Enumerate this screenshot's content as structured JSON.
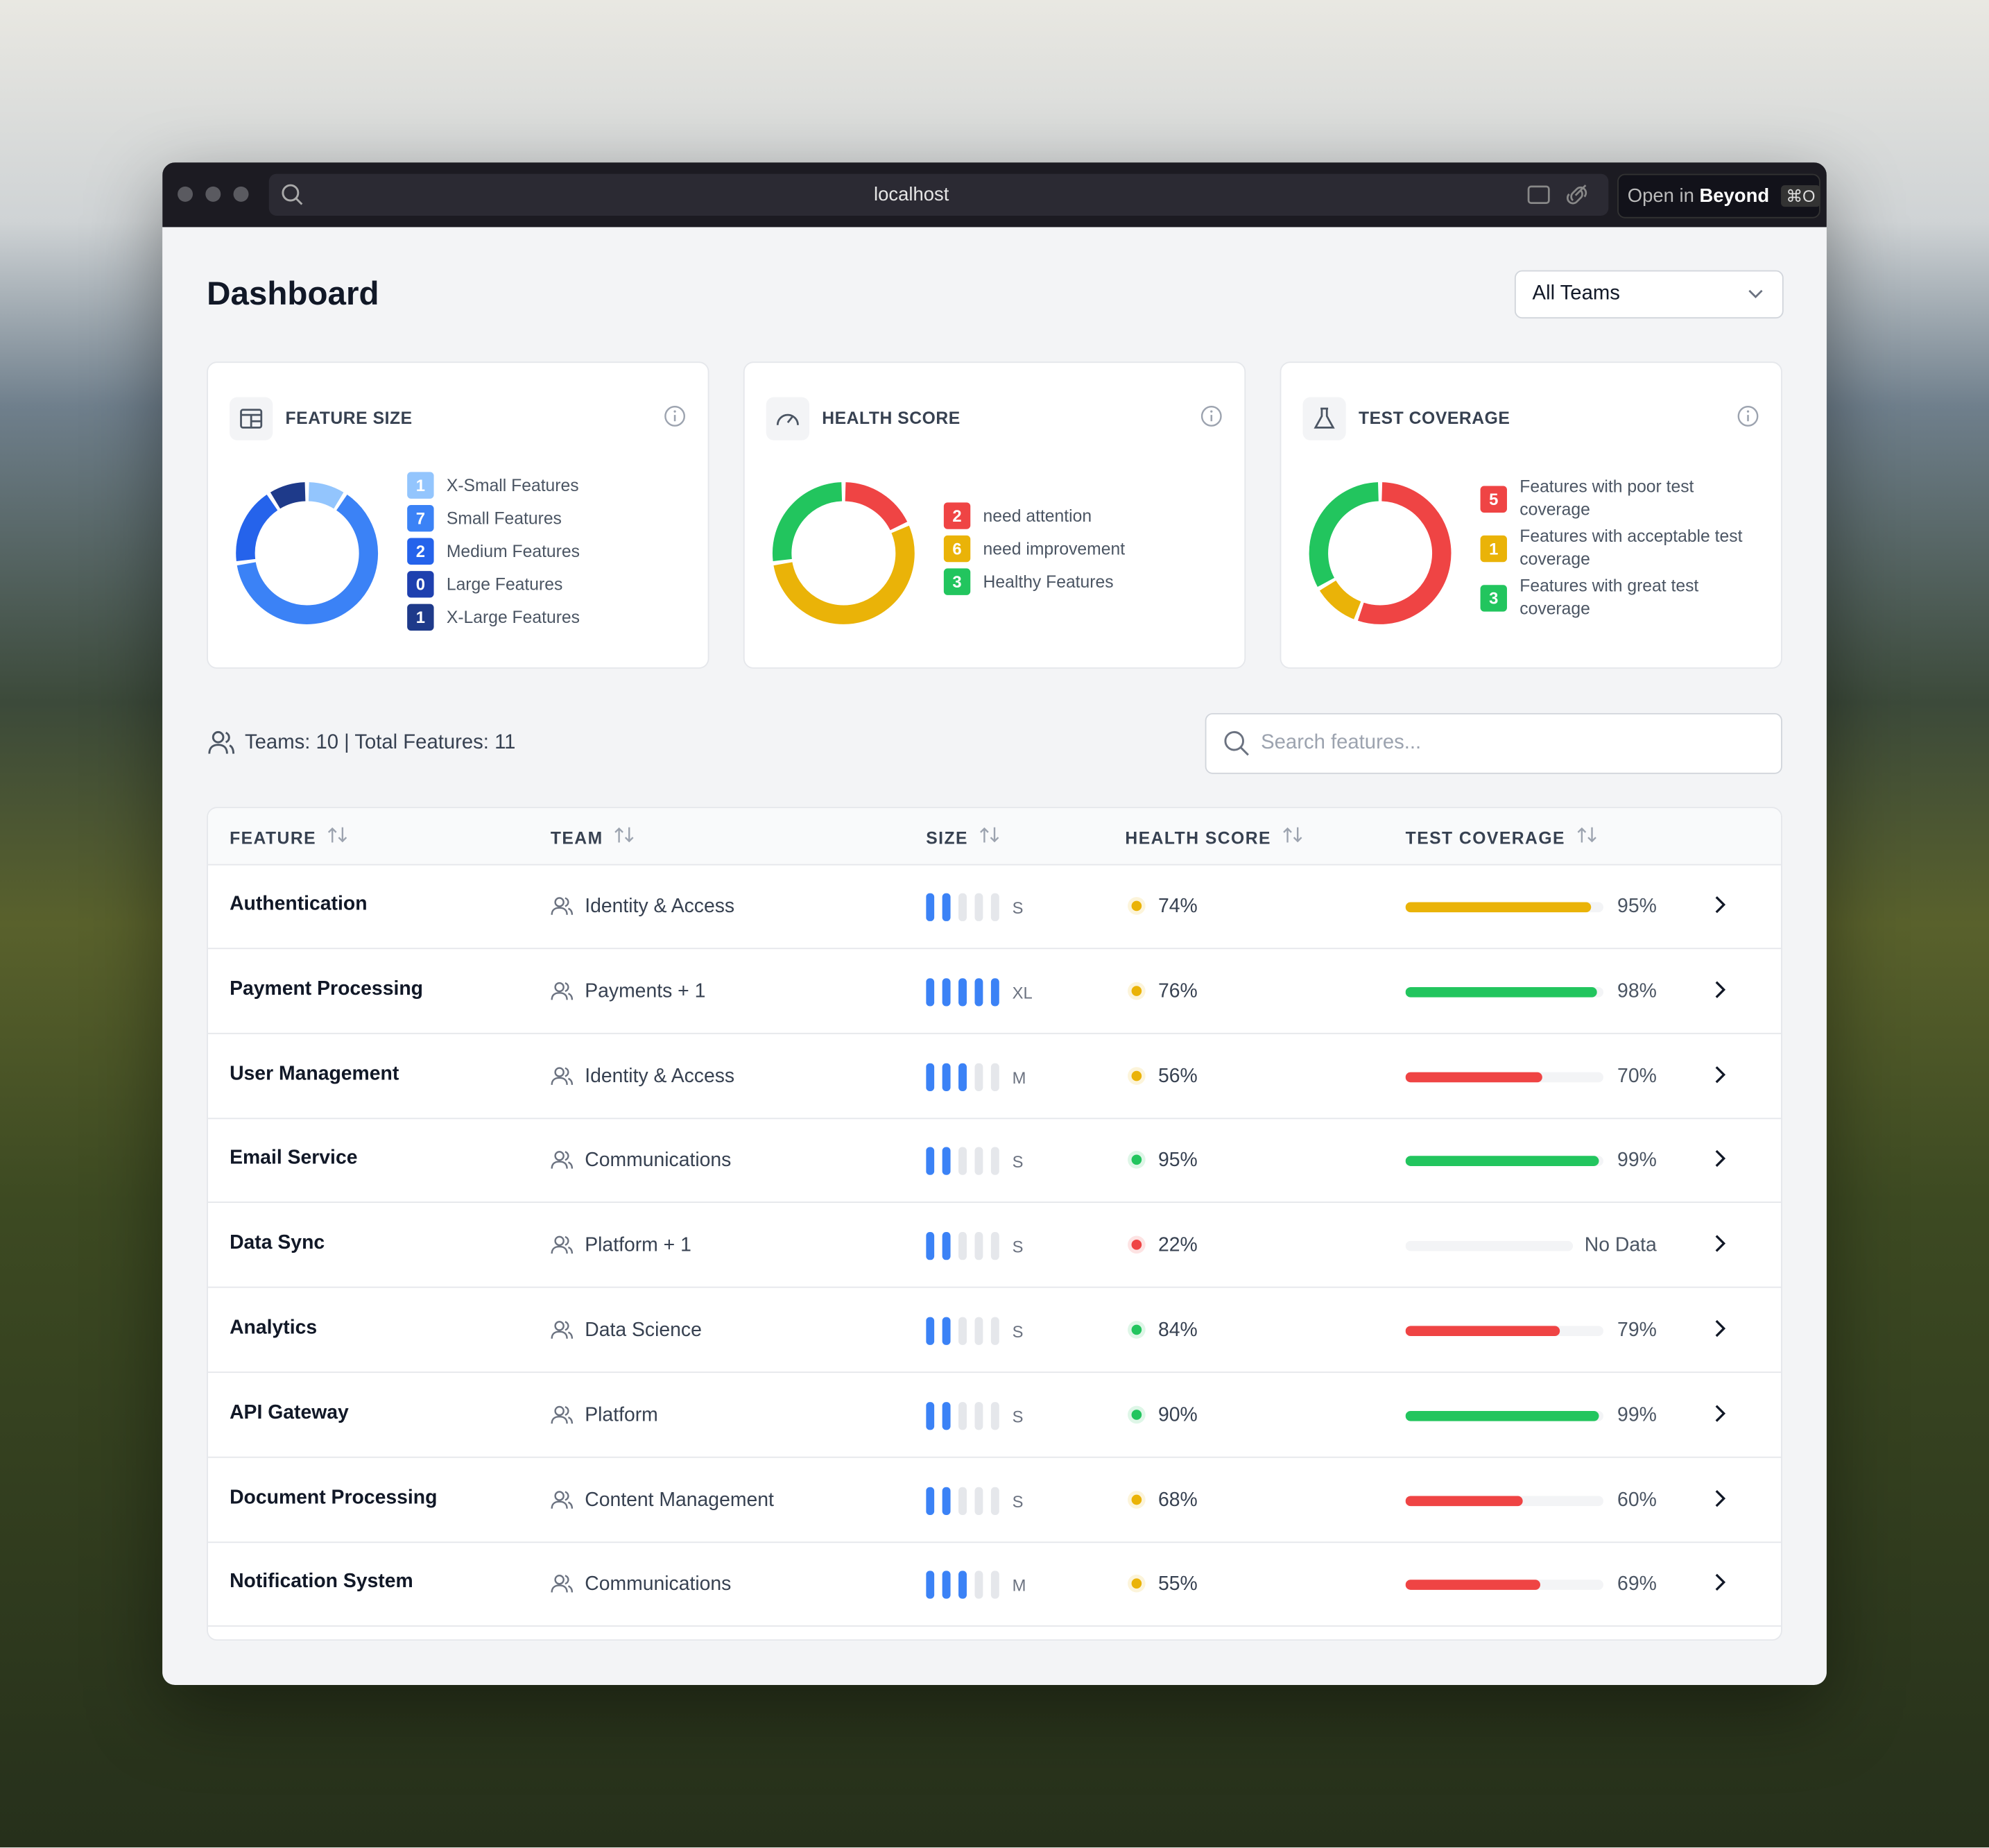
{
  "browser": {
    "url": "localhost",
    "open_button": "Open in",
    "open_button_app": "Beyond",
    "shortcut": "⌘O"
  },
  "header": {
    "title": "Dashboard",
    "team_filter": "All Teams"
  },
  "cards": [
    {
      "title": "FEATURE SIZE",
      "legend": [
        {
          "count": 1,
          "label": "X-Small Features",
          "color": "#93c5fd"
        },
        {
          "count": 7,
          "label": "Small Features",
          "color": "#3b82f6"
        },
        {
          "count": 2,
          "label": "Medium Features",
          "color": "#2563eb"
        },
        {
          "count": 0,
          "label": "Large Features",
          "color": "#1e40af"
        },
        {
          "count": 1,
          "label": "X-Large Features",
          "color": "#1e3a8a"
        }
      ]
    },
    {
      "title": "HEALTH SCORE",
      "legend": [
        {
          "count": 2,
          "label": "need attention",
          "color": "#ef4444"
        },
        {
          "count": 6,
          "label": "need improvement",
          "color": "#eab308"
        },
        {
          "count": 3,
          "label": "Healthy Features",
          "color": "#22c55e"
        }
      ]
    },
    {
      "title": "TEST COVERAGE",
      "legend": [
        {
          "count": 5,
          "label": "Features with poor test coverage",
          "color": "#ef4444"
        },
        {
          "count": 1,
          "label": "Features with acceptable test coverage",
          "color": "#eab308"
        },
        {
          "count": 3,
          "label": "Features with great test coverage",
          "color": "#22c55e"
        }
      ]
    }
  ],
  "summary": "Teams: 10 | Total Features: 11",
  "search_placeholder": "Search features...",
  "table": {
    "columns": [
      "FEATURE",
      "TEAM",
      "SIZE",
      "HEALTH SCORE",
      "TEST COVERAGE"
    ],
    "rows": [
      {
        "feature": "Authentication",
        "team": "Identity & Access",
        "size": "S",
        "health": "74%",
        "health_color": "#eab308",
        "coverage": {
          "value": 95,
          "label": "95%"
        },
        "coverage_color": "#eab308"
      },
      {
        "feature": "Payment Processing",
        "team": "Payments + 1",
        "size": "XL",
        "health": "76%",
        "health_color": "#eab308",
        "coverage": {
          "value": 98,
          "label": "98%"
        },
        "coverage_color": "#22c55e"
      },
      {
        "feature": "User Management",
        "team": "Identity & Access",
        "size": "M",
        "health": "56%",
        "health_color": "#eab308",
        "coverage": {
          "value": 70,
          "label": "70%"
        },
        "coverage_color": "#ef4444"
      },
      {
        "feature": "Email Service",
        "team": "Communications",
        "size": "S",
        "health": "95%",
        "health_color": "#22c55e",
        "coverage": {
          "value": 99,
          "label": "99%"
        },
        "coverage_color": "#22c55e"
      },
      {
        "feature": "Data Sync",
        "team": "Platform + 1",
        "size": "S",
        "health": "22%",
        "health_color": "#ef4444",
        "coverage": {
          "value": null,
          "label": "No Data"
        },
        "coverage_color": "#e5e7eb"
      },
      {
        "feature": "Analytics",
        "team": "Data Science",
        "size": "S",
        "health": "84%",
        "health_color": "#22c55e",
        "coverage": {
          "value": 79,
          "label": "79%"
        },
        "coverage_color": "#ef4444"
      },
      {
        "feature": "API Gateway",
        "team": "Platform",
        "size": "S",
        "health": "90%",
        "health_color": "#22c55e",
        "coverage": {
          "value": 99,
          "label": "99%"
        },
        "coverage_color": "#22c55e"
      },
      {
        "feature": "Document Processing",
        "team": "Content Management",
        "size": "S",
        "health": "68%",
        "health_color": "#eab308",
        "coverage": {
          "value": 60,
          "label": "60%"
        },
        "coverage_color": "#ef4444"
      },
      {
        "feature": "Notification System",
        "team": "Communications",
        "size": "M",
        "health": "55%",
        "health_color": "#eab308",
        "coverage": {
          "value": 69,
          "label": "69%"
        },
        "coverage_color": "#ef4444"
      }
    ]
  }
}
